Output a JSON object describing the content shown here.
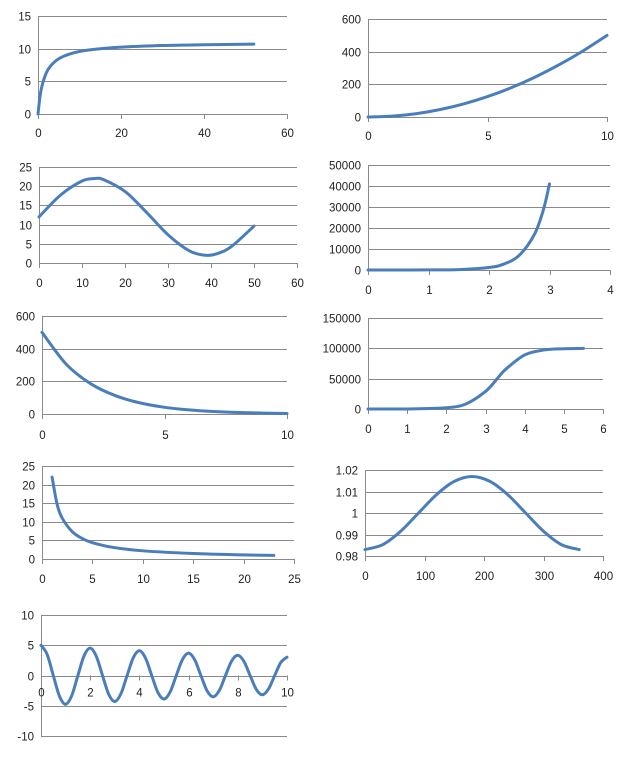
{
  "line_color": "#4a7ebb",
  "chart_data": [
    {
      "type": "line",
      "title": "",
      "xlabel": "",
      "ylabel": "",
      "xlim": [
        0,
        60
      ],
      "ylim": [
        0,
        15
      ],
      "xticks": [
        "0",
        "20",
        "40",
        "60"
      ],
      "yticks": [
        "0",
        "5",
        "10",
        "15"
      ],
      "x": [
        0,
        0.5,
        1,
        2,
        3,
        5,
        8,
        12,
        20,
        30,
        40,
        52
      ],
      "y": [
        0,
        2.75,
        4.4,
        6.29,
        7.33,
        8.46,
        9.26,
        9.78,
        10.23,
        10.48,
        10.6,
        10.69
      ]
    },
    {
      "type": "line",
      "title": "",
      "xlabel": "",
      "ylabel": "",
      "xlim": [
        0,
        10
      ],
      "ylim": [
        0,
        600
      ],
      "xticks": [
        "0",
        "5",
        "10"
      ],
      "yticks": [
        "0",
        "200",
        "400",
        "600"
      ],
      "x": [
        0,
        1,
        2,
        3,
        4,
        5,
        6,
        7,
        8,
        9,
        10
      ],
      "y": [
        0,
        5,
        20,
        45,
        80,
        125,
        180,
        245,
        320,
        405,
        500
      ]
    },
    {
      "type": "line",
      "title": "",
      "xlabel": "",
      "ylabel": "",
      "xlim": [
        0,
        60
      ],
      "ylim": [
        0,
        25
      ],
      "xticks": [
        "0",
        "10",
        "20",
        "30",
        "40",
        "50",
        "60"
      ],
      "yticks": [
        "0",
        "5",
        "10",
        "15",
        "20",
        "25"
      ],
      "x": [
        0,
        5,
        10,
        13,
        15,
        20,
        25,
        30,
        35,
        39,
        42,
        45,
        50
      ],
      "y": [
        12,
        17.68,
        21.35,
        22,
        21.71,
        18.63,
        13.2,
        7.35,
        3.15,
        2,
        2.65,
        4.51,
        9.6
      ]
    },
    {
      "type": "line",
      "title": "",
      "xlabel": "",
      "ylabel": "",
      "xlim": [
        0,
        4
      ],
      "ylim": [
        0,
        50000
      ],
      "xticks": [
        "0",
        "1",
        "2",
        "3",
        "4"
      ],
      "yticks": [
        "0",
        "10000",
        "20000",
        "30000",
        "40000",
        "50000"
      ],
      "x": [
        0,
        0.5,
        1,
        1.5,
        2,
        2.25,
        2.5,
        2.75,
        2.9,
        3
      ],
      "y": [
        1,
        6,
        34,
        202,
        1190,
        2880,
        6980,
        16920,
        28780,
        41000
      ]
    },
    {
      "type": "line",
      "title": "",
      "xlabel": "",
      "ylabel": "",
      "xlim": [
        0,
        10
      ],
      "ylim": [
        0,
        600
      ],
      "xticks": [
        "0",
        "5",
        "10"
      ],
      "yticks": [
        "0",
        "200",
        "400",
        "600"
      ],
      "x": [
        0,
        1,
        2,
        3,
        4,
        5,
        6,
        7,
        8,
        9,
        10
      ],
      "y": [
        500,
        303,
        184,
        112,
        68,
        41,
        25,
        15,
        9,
        5.6,
        3.4
      ]
    },
    {
      "type": "line",
      "title": "",
      "xlabel": "",
      "ylabel": "",
      "xlim": [
        0,
        6
      ],
      "ylim": [
        0,
        150000
      ],
      "xticks": [
        "0",
        "1",
        "2",
        "3",
        "4",
        "5",
        "6"
      ],
      "yticks": [
        "0",
        "50000",
        "100000",
        "150000"
      ],
      "x": [
        0,
        1,
        2,
        2.5,
        3,
        3.3,
        3.5,
        4,
        4.5,
        5,
        5.5
      ],
      "y": [
        5,
        100,
        1984,
        8320,
        28900,
        50000,
        64560,
        89100,
        97340,
        99390,
        99860
      ]
    },
    {
      "type": "line",
      "title": "",
      "xlabel": "",
      "ylabel": "",
      "xlim": [
        0,
        25
      ],
      "ylim": [
        0,
        25
      ],
      "xticks": [
        "0",
        "5",
        "10",
        "15",
        "20",
        "25"
      ],
      "yticks": [
        "0",
        "5",
        "10",
        "15",
        "20",
        "25"
      ],
      "x": [
        1,
        1.5,
        2,
        3,
        4,
        5,
        7,
        10,
        15,
        20,
        23
      ],
      "y": [
        22,
        14.7,
        11,
        7.33,
        5.5,
        4.4,
        3.14,
        2.2,
        1.47,
        1.1,
        0.96
      ]
    },
    {
      "type": "line",
      "title": "",
      "xlabel": "",
      "ylabel": "",
      "xlim": [
        0,
        400
      ],
      "ylim": [
        0.98,
        1.02
      ],
      "xticks": [
        "0",
        "100",
        "200",
        "300",
        "400"
      ],
      "yticks": [
        "0.98",
        "0.99",
        "1",
        "1.01",
        "1.02"
      ],
      "x": [
        0,
        30,
        60,
        90,
        120,
        150,
        180,
        210,
        240,
        270,
        300,
        330,
        360
      ],
      "y": [
        0.983,
        0.9853,
        0.9915,
        1,
        1.0085,
        1.0147,
        1.017,
        1.0147,
        1.0085,
        1,
        0.9915,
        0.9853,
        0.983
      ]
    },
    {
      "type": "line",
      "title": "",
      "xlabel": "",
      "ylabel": "",
      "xlim": [
        0,
        10
      ],
      "ylim": [
        -10,
        10
      ],
      "xticks": [
        "0",
        "2",
        "4",
        "6",
        "8",
        "10"
      ],
      "yticks": [
        "-10",
        "-5",
        "0",
        "5",
        "10"
      ],
      "x": [
        0,
        0.25,
        0.5,
        0.75,
        1,
        1.25,
        1.5,
        1.75,
        2,
        2.25,
        2.5,
        2.75,
        3,
        3.25,
        3.5,
        3.75,
        4,
        4.25,
        4.5,
        4.75,
        5,
        5.25,
        5.5,
        5.75,
        6,
        6.25,
        6.5,
        6.75,
        7,
        7.25,
        7.5,
        7.75,
        8,
        8.25,
        8.5,
        8.75,
        9,
        9.25,
        9.5,
        9.75,
        10
      ],
      "y": [
        5,
        3.49,
        0,
        -3.41,
        -4.76,
        -3.32,
        0,
        3.24,
        4.52,
        3.16,
        0,
        -3.08,
        -4.3,
        -3,
        0,
        2.93,
        4.09,
        2.86,
        0,
        -2.79,
        -3.89,
        -2.72,
        0,
        2.65,
        3.7,
        2.59,
        0,
        -2.52,
        -3.52,
        -2.46,
        0,
        2.4,
        3.35,
        2.34,
        0,
        -2.28,
        -3.19,
        -2.23,
        0,
        2.17,
        3.03
      ]
    }
  ]
}
